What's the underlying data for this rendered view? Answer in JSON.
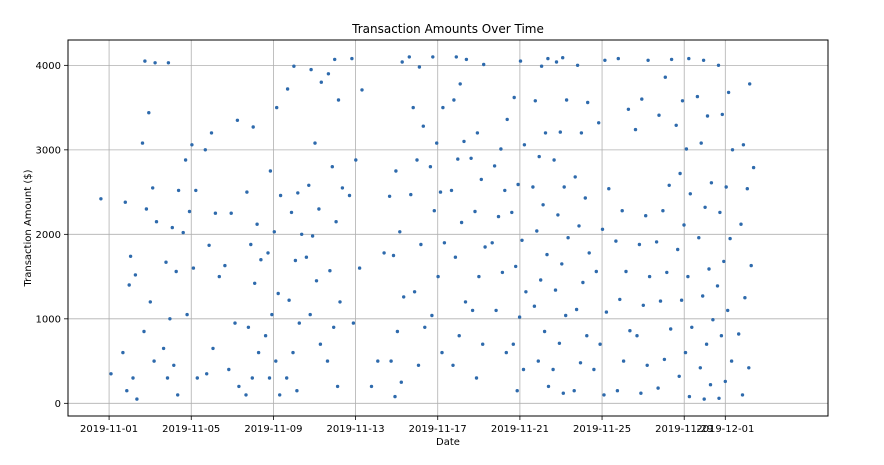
{
  "chart_data": {
    "type": "scatter",
    "title": "Transaction Amounts Over Time",
    "xlabel": "Date",
    "ylabel": "Transaction Amount ($)",
    "xlim": [
      "2019-10-30",
      "2019-12-06"
    ],
    "ylim": [
      -150,
      4300
    ],
    "grid": true,
    "legend": "none",
    "x_ticks": [
      "2019-11-01",
      "2019-11-05",
      "2019-11-09",
      "2019-11-13",
      "2019-11-17",
      "2019-11-21",
      "2019-11-25",
      "2019-11-29",
      "2019-12-01"
    ],
    "y_ticks": [
      0,
      1000,
      2000,
      3000,
      4000
    ],
    "series": [
      {
        "color": "#2e6aac",
        "x": [
          "2019-11-01",
          "2019-11-01",
          "2019-11-02",
          "2019-11-02",
          "2019-11-02",
          "2019-11-02",
          "2019-11-02",
          "2019-11-02",
          "2019-11-02",
          "2019-11-02",
          "2019-11-03",
          "2019-11-03",
          "2019-11-03",
          "2019-11-03",
          "2019-11-03",
          "2019-11-03",
          "2019-11-03",
          "2019-11-03",
          "2019-11-03",
          "2019-11-03",
          "2019-11-04",
          "2019-11-04",
          "2019-11-04",
          "2019-11-04",
          "2019-11-04",
          "2019-11-04",
          "2019-11-04",
          "2019-11-04",
          "2019-11-04",
          "2019-11-04",
          "2019-11-05",
          "2019-11-05",
          "2019-11-05",
          "2019-11-05",
          "2019-11-05",
          "2019-11-05",
          "2019-11-05",
          "2019-11-05",
          "2019-11-06",
          "2019-11-06",
          "2019-11-06",
          "2019-11-06",
          "2019-11-06",
          "2019-11-06",
          "2019-11-06",
          "2019-11-07",
          "2019-11-07",
          "2019-11-07",
          "2019-11-07",
          "2019-11-07",
          "2019-11-07",
          "2019-11-08",
          "2019-11-08",
          "2019-11-08",
          "2019-11-08",
          "2019-11-08",
          "2019-11-08",
          "2019-11-08",
          "2019-11-08",
          "2019-11-08",
          "2019-11-08",
          "2019-11-09",
          "2019-11-09",
          "2019-11-09",
          "2019-11-09",
          "2019-11-09",
          "2019-11-09",
          "2019-11-09",
          "2019-11-09",
          "2019-11-09",
          "2019-11-09",
          "2019-11-09",
          "2019-11-10",
          "2019-11-10",
          "2019-11-10",
          "2019-11-10",
          "2019-11-10",
          "2019-11-10",
          "2019-11-10",
          "2019-11-10",
          "2019-11-10",
          "2019-11-10",
          "2019-11-10",
          "2019-11-11",
          "2019-11-11",
          "2019-11-11",
          "2019-11-11",
          "2019-11-11",
          "2019-11-11",
          "2019-11-11",
          "2019-11-11",
          "2019-11-11",
          "2019-11-11",
          "2019-11-12",
          "2019-11-12",
          "2019-11-12",
          "2019-11-12",
          "2019-11-12",
          "2019-11-12",
          "2019-11-12",
          "2019-11-12",
          "2019-11-12",
          "2019-11-12",
          "2019-11-12",
          "2019-11-13",
          "2019-11-13",
          "2019-11-13",
          "2019-11-13",
          "2019-11-13",
          "2019-11-13",
          "2019-11-14",
          "2019-11-14",
          "2019-11-14",
          "2019-11-15",
          "2019-11-15",
          "2019-11-15",
          "2019-11-15",
          "2019-11-15",
          "2019-11-15",
          "2019-11-15",
          "2019-11-15",
          "2019-11-15",
          "2019-11-15",
          "2019-11-16",
          "2019-11-16",
          "2019-11-16",
          "2019-11-16",
          "2019-11-16",
          "2019-11-16",
          "2019-11-16",
          "2019-11-16",
          "2019-11-16",
          "2019-11-16",
          "2019-11-17",
          "2019-11-17",
          "2019-11-17",
          "2019-11-17",
          "2019-11-17",
          "2019-11-17",
          "2019-11-17",
          "2019-11-17",
          "2019-11-17",
          "2019-11-17",
          "2019-11-18",
          "2019-11-18",
          "2019-11-18",
          "2019-11-18",
          "2019-11-18",
          "2019-11-18",
          "2019-11-18",
          "2019-11-18",
          "2019-11-18",
          "2019-11-18",
          "2019-11-18",
          "2019-11-18",
          "2019-11-19",
          "2019-11-19",
          "2019-11-19",
          "2019-11-19",
          "2019-11-19",
          "2019-11-19",
          "2019-11-19",
          "2019-11-19",
          "2019-11-19",
          "2019-11-19",
          "2019-11-20",
          "2019-11-20",
          "2019-11-20",
          "2019-11-20",
          "2019-11-20",
          "2019-11-20",
          "2019-11-20",
          "2019-11-20",
          "2019-11-20",
          "2019-11-21",
          "2019-11-21",
          "2019-11-21",
          "2019-11-21",
          "2019-11-21",
          "2019-11-21",
          "2019-11-21",
          "2019-11-21",
          "2019-11-21",
          "2019-11-21",
          "2019-11-21",
          "2019-11-21",
          "2019-11-22",
          "2019-11-22",
          "2019-11-22",
          "2019-11-22",
          "2019-11-22",
          "2019-11-22",
          "2019-11-22",
          "2019-11-22",
          "2019-11-22",
          "2019-11-22",
          "2019-11-22",
          "2019-11-22",
          "2019-11-22",
          "2019-11-22",
          "2019-11-23",
          "2019-11-23",
          "2019-11-23",
          "2019-11-23",
          "2019-11-23",
          "2019-11-23",
          "2019-11-23",
          "2019-11-23",
          "2019-11-23",
          "2019-11-23",
          "2019-11-23",
          "2019-11-23",
          "2019-11-23",
          "2019-11-23",
          "2019-11-24",
          "2019-11-24",
          "2019-11-24",
          "2019-11-24",
          "2019-11-24",
          "2019-11-24",
          "2019-11-24",
          "2019-11-24",
          "2019-11-24",
          "2019-11-24",
          "2019-11-24",
          "2019-11-24",
          "2019-11-25",
          "2019-11-25",
          "2019-11-25",
          "2019-11-25",
          "2019-11-25",
          "2019-11-25",
          "2019-11-25",
          "2019-11-25",
          "2019-11-25",
          "2019-11-26",
          "2019-11-26",
          "2019-11-26",
          "2019-11-26",
          "2019-11-26",
          "2019-11-26",
          "2019-11-26",
          "2019-11-26",
          "2019-11-26",
          "2019-11-27",
          "2019-11-27",
          "2019-11-27",
          "2019-11-27",
          "2019-11-27",
          "2019-11-27",
          "2019-11-27",
          "2019-11-27",
          "2019-11-27",
          "2019-11-27",
          "2019-11-28",
          "2019-11-28",
          "2019-11-28",
          "2019-11-28",
          "2019-11-28",
          "2019-11-28",
          "2019-11-28",
          "2019-11-28",
          "2019-11-28",
          "2019-11-28",
          "2019-11-28",
          "2019-11-29",
          "2019-11-29",
          "2019-11-29",
          "2019-11-29",
          "2019-11-29",
          "2019-11-29",
          "2019-11-29",
          "2019-11-29",
          "2019-11-29",
          "2019-11-29",
          "2019-11-29",
          "2019-11-29",
          "2019-11-29",
          "2019-11-29",
          "2019-11-30",
          "2019-11-30",
          "2019-11-30",
          "2019-11-30",
          "2019-11-30",
          "2019-11-30",
          "2019-11-30",
          "2019-11-30",
          "2019-11-30",
          "2019-11-30",
          "2019-11-30",
          "2019-11-30",
          "2019-11-30",
          "2019-11-30",
          "2019-12-01",
          "2019-12-01",
          "2019-12-01",
          "2019-12-01",
          "2019-12-01",
          "2019-12-01",
          "2019-12-01",
          "2019-12-01",
          "2019-12-01",
          "2019-12-01",
          "2019-12-01",
          "2019-12-01",
          "2019-12-01",
          "2019-12-01",
          "2019-12-02",
          "2019-12-02",
          "2019-12-02",
          "2019-12-02",
          "2019-12-02",
          "2019-12-02",
          "2019-12-02",
          "2019-12-02",
          "2019-12-02",
          "2019-12-02"
        ],
        "y": [
          2420,
          350,
          2380,
          1520,
          1400,
          600,
          300,
          150,
          50,
          1740,
          4050,
          4030,
          3440,
          3080,
          2550,
          2300,
          2150,
          1200,
          850,
          500,
          4030,
          2520,
          2080,
          1670,
          1560,
          1000,
          650,
          450,
          300,
          100,
          3060,
          2880,
          2520,
          2270,
          2020,
          1600,
          1050,
          300,
          3200,
          3000,
          2250,
          1870,
          1500,
          650,
          350,
          3350,
          2250,
          1630,
          950,
          400,
          200,
          3270,
          2500,
          2120,
          1880,
          1700,
          1420,
          900,
          600,
          300,
          100,
          3500,
          2750,
          2460,
          2030,
          1780,
          1300,
          1050,
          800,
          500,
          300,
          100,
          3990,
          3720,
          2490,
          2260,
          2000,
          1690,
          1220,
          950,
          600,
          300,
          150,
          3950,
          3800,
          3080,
          2580,
          2300,
          1980,
          1730,
          1450,
          1050,
          700,
          4070,
          3900,
          3590,
          2800,
          2550,
          2150,
          1570,
          1200,
          900,
          500,
          200,
          4080,
          3710,
          2880,
          2460,
          1600,
          950,
          1780,
          500,
          200,
          4040,
          2750,
          2450,
          2030,
          1750,
          1260,
          850,
          500,
          250,
          80,
          4100,
          3980,
          3500,
          3280,
          2880,
          2470,
          1880,
          1320,
          900,
          450,
          4100,
          3500,
          3080,
          2800,
          2500,
          2280,
          1900,
          1500,
          1040,
          600,
          4100,
          4070,
          3780,
          3590,
          3100,
          2890,
          2520,
          2140,
          1730,
          1200,
          800,
          450,
          4010,
          3200,
          2900,
          2650,
          2270,
          1850,
          1500,
          1100,
          700,
          300,
          3360,
          3010,
          2810,
          2520,
          2210,
          1900,
          1550,
          1100,
          600,
          4050,
          3620,
          3060,
          2590,
          2260,
          1930,
          1620,
          1320,
          1020,
          700,
          400,
          150,
          4080,
          3990,
          3580,
          3200,
          2920,
          2560,
          2350,
          2040,
          1760,
          1460,
          1150,
          850,
          500,
          200,
          4090,
          4040,
          3590,
          3210,
          2880,
          2560,
          2230,
          1960,
          1650,
          1340,
          1040,
          710,
          400,
          120,
          4000,
          3560,
          3200,
          2680,
          2430,
          2100,
          1780,
          1430,
          1110,
          800,
          480,
          150,
          4060,
          3320,
          2540,
          2060,
          1560,
          1080,
          700,
          400,
          100,
          4080,
          3480,
          2280,
          1920,
          1560,
          1230,
          860,
          500,
          150,
          4060,
          3600,
          3240,
          2220,
          1880,
          1500,
          1160,
          800,
          450,
          120,
          4070,
          3860,
          3410,
          2580,
          2280,
          1910,
          1550,
          1210,
          880,
          520,
          180,
          4080,
          3580,
          3290,
          3010,
          2720,
          2480,
          2110,
          1820,
          1500,
          1220,
          900,
          600,
          320,
          80,
          4060,
          3630,
          3400,
          3080,
          2610,
          2320,
          1960,
          1590,
          1270,
          990,
          700,
          420,
          220,
          50,
          4000,
          3680,
          3420,
          3000,
          2560,
          2260,
          1950,
          1680,
          1390,
          1100,
          800,
          500,
          260,
          60,
          3780,
          3060,
          2790,
          2540,
          2120,
          1630,
          1250,
          820,
          420,
          100
        ]
      }
    ]
  }
}
